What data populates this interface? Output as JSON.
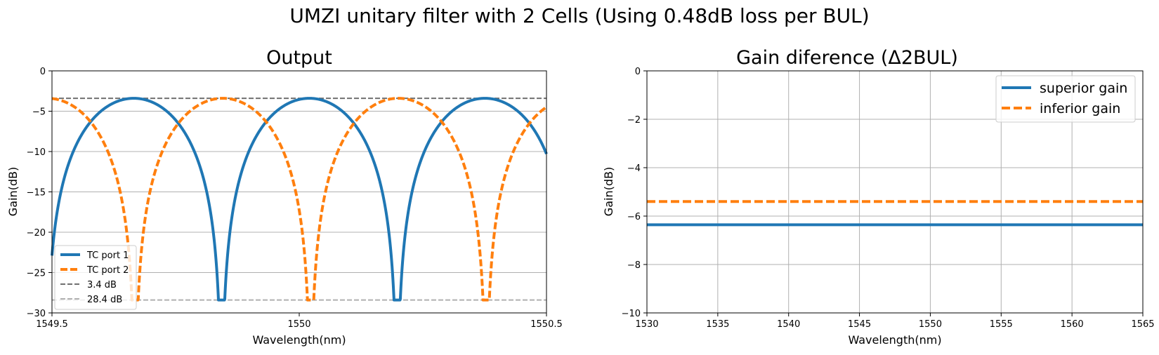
{
  "figure": {
    "suptitle": "UMZI unitary filter with 2 Cells (Using 0.48dB loss per BUL)"
  },
  "chart_data": [
    {
      "type": "line",
      "title": "Output",
      "xlabel": "Wavelength(nm)",
      "ylabel": "Gain(dB)",
      "xlim": [
        1549.5,
        1550.5
      ],
      "ylim": [
        -30,
        0
      ],
      "xticks": [
        1549.5,
        1550,
        1550.5
      ],
      "xtick_labels": [
        "1549.5",
        "1550",
        "1550.5"
      ],
      "yticks": [
        -30,
        -25,
        -20,
        -15,
        -10,
        -5,
        0
      ],
      "ytick_labels": [
        "−30",
        "−25",
        "−20",
        "−15",
        "−10",
        "−5",
        "0"
      ],
      "grid": "y",
      "legend_position": "lower-left",
      "period_nm": 0.355,
      "peak_db": -3.4,
      "null_db": -28.4,
      "series": [
        {
          "name": "TC port 1",
          "color": "#1f77b4",
          "style": "solid",
          "nulls_nm": [
            1549.488,
            1549.845,
            1550.2
          ]
        },
        {
          "name": "TC port 2",
          "color": "#ff7f0e",
          "style": "dashed",
          "nulls_nm": [
            1549.668,
            1550.022,
            1550.378
          ]
        }
      ],
      "reference_lines": [
        {
          "name": "3.4 dB",
          "y": -3.4,
          "color": "#707070",
          "style": "dashed"
        },
        {
          "name": "28.4 dB",
          "y": -28.4,
          "color": "#b0b0b0",
          "style": "dashed"
        }
      ]
    },
    {
      "type": "line",
      "title": "Gain diference (Δ2BUL)",
      "xlabel": "Wavelength(nm)",
      "ylabel": "Gain(dB)",
      "xlim": [
        1530,
        1565
      ],
      "ylim": [
        -10,
        0
      ],
      "xticks": [
        1530,
        1535,
        1540,
        1545,
        1550,
        1555,
        1560,
        1565
      ],
      "xtick_labels": [
        "1530",
        "1535",
        "1540",
        "1545",
        "1550",
        "1555",
        "1560",
        "1565"
      ],
      "yticks": [
        -10,
        -8,
        -6,
        -4,
        -2,
        0
      ],
      "ytick_labels": [
        "−10",
        "−8",
        "−6",
        "−4",
        "−2",
        "0"
      ],
      "grid": "both",
      "legend_position": "upper-right",
      "series": [
        {
          "name": "superior gain",
          "color": "#1f77b4",
          "style": "solid",
          "x": [
            1530,
            1565
          ],
          "y": [
            -6.36,
            -6.36
          ]
        },
        {
          "name": "inferior gain",
          "color": "#ff7f0e",
          "style": "dashed",
          "x": [
            1530,
            1565
          ],
          "y": [
            -5.4,
            -5.4
          ]
        }
      ]
    }
  ]
}
